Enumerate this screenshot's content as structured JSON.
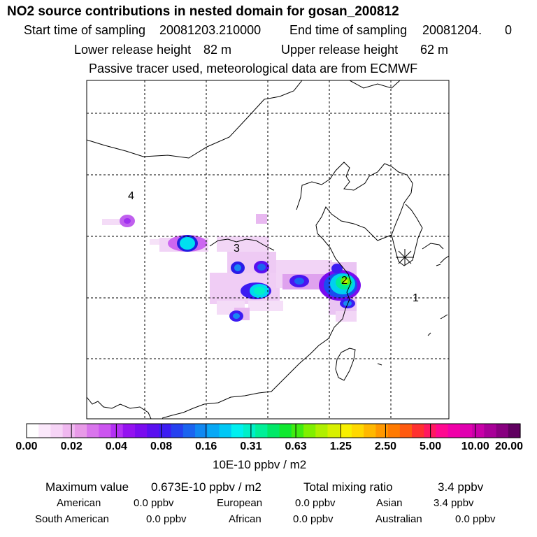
{
  "header": {
    "title": "NO2 source contributions in nested domain for gosan_200812",
    "start_label": "Start time of sampling",
    "start_value": "20081203.210000",
    "end_label": "End time of sampling",
    "end_value": "20081204.",
    "end_suffix": "0",
    "lower_label": "Lower release height",
    "lower_value": "82 m",
    "upper_label": "Upper release height",
    "upper_value": "62 m",
    "note": "Passive tracer used, meteorological data are from ECMWF"
  },
  "map": {
    "source_labels": [
      "1",
      "2",
      "3",
      "4"
    ]
  },
  "colorbar": {
    "ticks": [
      "0.00",
      "0.02",
      "0.04",
      "0.08",
      "0.16",
      "0.31",
      "0.63",
      "1.25",
      "2.50",
      "5.00",
      "10.00",
      "20.00"
    ],
    "unit": "10E-10 ppbv / m2",
    "colors": [
      "#ffffff",
      "#fbe8fb",
      "#f6d4f6",
      "#f0b8f0",
      "#e89ae8",
      "#d975ec",
      "#cc55f0",
      "#b430f5",
      "#9412f0",
      "#7a0cef",
      "#5a10f0",
      "#3c1cf2",
      "#2540f0",
      "#1a64f0",
      "#1088f2",
      "#08a8f5",
      "#00c8f5",
      "#00f0f0",
      "#00f0c8",
      "#00f098",
      "#00e868",
      "#10e830",
      "#40ec10",
      "#80f000",
      "#b0f000",
      "#d8f000",
      "#f8f000",
      "#ffd800",
      "#ffb800",
      "#ff9800",
      "#ff7a00",
      "#ff5a10",
      "#ff3030",
      "#ff1860",
      "#ff0890",
      "#f000a8",
      "#e000b0",
      "#c800a8",
      "#a80098",
      "#880080",
      "#600060"
    ]
  },
  "footer": {
    "max_label": "Maximum value",
    "max_value": "0.673E-10 ppbv / m2",
    "total_label": "Total mixing ratio",
    "total_value": "3.4 ppbv",
    "regions": [
      {
        "name": "American",
        "value": "0.0 ppbv"
      },
      {
        "name": "European",
        "value": "0.0 ppbv"
      },
      {
        "name": "Asian",
        "value": "3.4 ppbv"
      },
      {
        "name": "South American",
        "value": "0.0 ppbv"
      },
      {
        "name": "African",
        "value": "0.0 ppbv"
      },
      {
        "name": "Australian",
        "value": "0.0 ppbv"
      }
    ]
  }
}
